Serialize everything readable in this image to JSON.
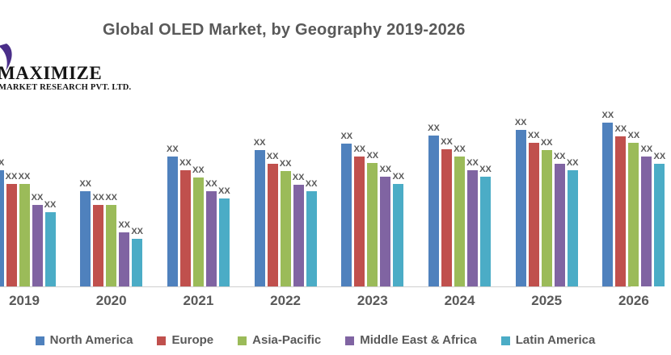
{
  "page": {
    "background": "#ffffff"
  },
  "logo": {
    "icon": "purple-swoosh-icon",
    "icon_color": "#4a2e89",
    "name": "MAXIMIZE",
    "subtitle": "MARKET RESEARCH PVT. LTD.",
    "text_color": "#151515"
  },
  "chart_data": {
    "type": "bar",
    "title": "Global OLED Market, by Geography 2019-2026",
    "title_color": "#595959",
    "categories": [
      "2019",
      "2020",
      "2021",
      "2022",
      "2023",
      "2024",
      "2025",
      "2026"
    ],
    "series": [
      {
        "name": "North America",
        "color": "#4F81BD",
        "values": [
          144,
          118,
          161,
          169,
          177,
          187,
          194,
          203
        ]
      },
      {
        "name": "Europe",
        "color": "#C0504D",
        "values": [
          127,
          101,
          144,
          152,
          161,
          170,
          178,
          186
        ]
      },
      {
        "name": "Asia-Pacific",
        "color": "#9BBB59",
        "values": [
          127,
          101,
          135,
          143,
          153,
          161,
          169,
          178
        ]
      },
      {
        "name": "Middle East & Africa",
        "color": "#8064A2",
        "values": [
          101,
          67,
          118,
          126,
          136,
          144,
          152,
          161
        ]
      },
      {
        "name": "Latin America",
        "color": "#4BACC6",
        "values": [
          92,
          59,
          109,
          118,
          127,
          136,
          144,
          152
        ]
      }
    ],
    "value_labels": "XX",
    "ylim": [
      0,
      220
    ],
    "grid": false,
    "value_axis_visible": false,
    "legend_position": "bottom",
    "label_color": "#595959",
    "axis_line_color": "#cfcfcf"
  }
}
